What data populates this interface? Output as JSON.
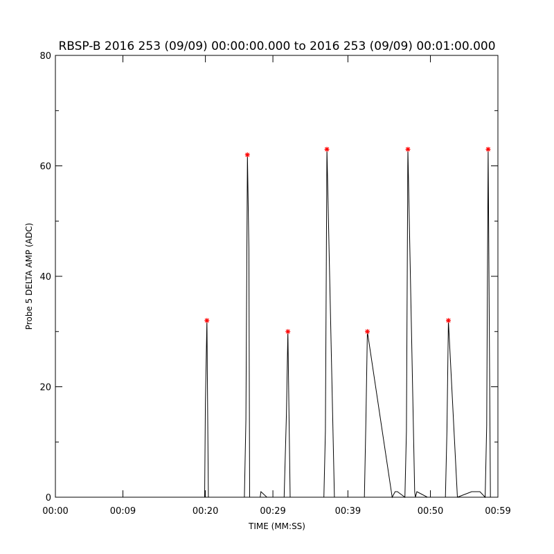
{
  "chart_data": {
    "type": "line",
    "title": "RBSP-B 2016 253 (09/09) 00:00:00.000 to 2016 253 (09/09) 00:01:00.000",
    "xlabel": "TIME (MM:SS)",
    "ylabel": "Probe 5 DELTA AMP (ADC)",
    "xlim": [
      0,
      59
    ],
    "ylim": [
      0,
      80
    ],
    "x_tick_values": [
      0,
      9,
      20,
      29,
      39,
      50,
      59
    ],
    "x_tick_labels": [
      "00:00",
      "00:09",
      "00:20",
      "00:29",
      "00:39",
      "00:50",
      "00:59"
    ],
    "y_tick_values": [
      0,
      20,
      40,
      60,
      80
    ],
    "y_tick_labels": [
      "0",
      "20",
      "40",
      "60",
      "80"
    ],
    "grid": false,
    "series": [
      {
        "style": "line",
        "color": "#000000",
        "x": [
          0,
          19.9,
          20.0,
          20.2,
          20.4,
          25.2,
          25.4,
          25.6,
          25.8,
          25.9,
          26.8,
          27.3,
          27.4,
          28.2,
          29.9,
          30.5,
          30.8,
          31.0,
          31.3,
          34.7,
          35.8,
          36.0,
          36.2,
          37.2,
          41.2,
          41.4,
          41.6,
          44.9,
          45.3,
          45.6,
          46.6,
          46.8,
          47.0,
          47.9,
          48.0,
          48.2,
          49.6,
          52.0,
          52.2,
          52.4,
          53.6,
          55.5,
          56.6,
          57.3,
          57.5,
          57.7,
          58.0,
          59
        ],
        "y": [
          0,
          0,
          17,
          32,
          0,
          0,
          14,
          62,
          45,
          0,
          0,
          0,
          1,
          0,
          0,
          0,
          15,
          30,
          0,
          0,
          0,
          12,
          63,
          0,
          0,
          14,
          30,
          0,
          1,
          1,
          0,
          12,
          63,
          1,
          0,
          1,
          0,
          0,
          12,
          32,
          0,
          1,
          1,
          0,
          13,
          63,
          0,
          0
        ]
      },
      {
        "style": "markers",
        "marker": "asterisk",
        "color": "#ff0000",
        "x": [
          20.2,
          25.6,
          31.0,
          36.2,
          41.6,
          47.0,
          52.4,
          57.7
        ],
        "y": [
          32,
          62,
          30,
          63,
          30,
          63,
          32,
          63
        ]
      }
    ]
  }
}
